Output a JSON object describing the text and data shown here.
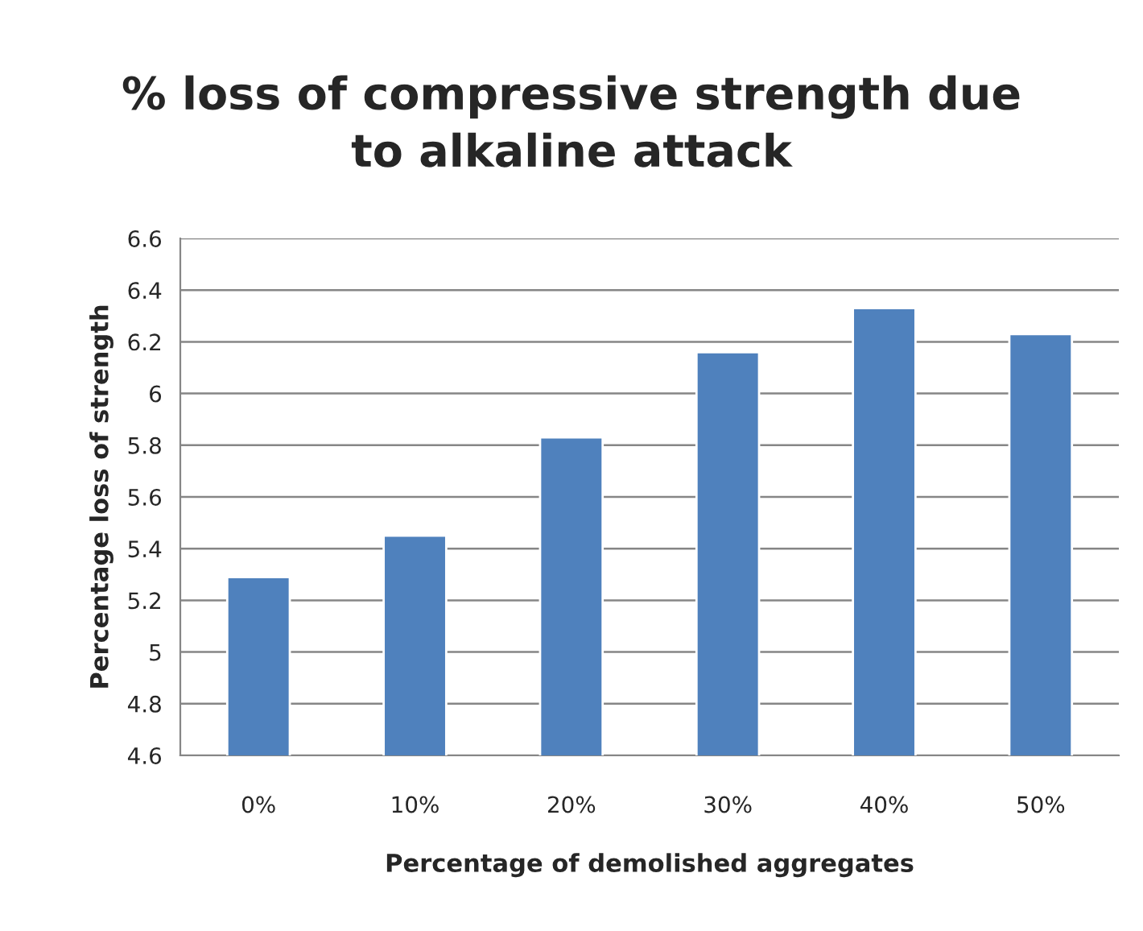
{
  "chart_data": {
    "type": "bar",
    "title": "% loss of compressive strength due\nto alkaline attack",
    "xlabel": "Percentage of demolished aggregates",
    "ylabel": "Percentage loss of strength",
    "categories": [
      "0%",
      "10%",
      "20%",
      "30%",
      "40%",
      "50%"
    ],
    "values": [
      5.29,
      5.45,
      5.83,
      6.16,
      6.33,
      6.23
    ],
    "color": "#4f81bd",
    "ylim": [
      4.6,
      6.6
    ],
    "yticks": [
      4.6,
      4.8,
      5,
      5.2,
      5.4,
      5.6,
      5.8,
      6,
      6.2,
      6.4,
      6.6
    ],
    "grid": "y"
  }
}
